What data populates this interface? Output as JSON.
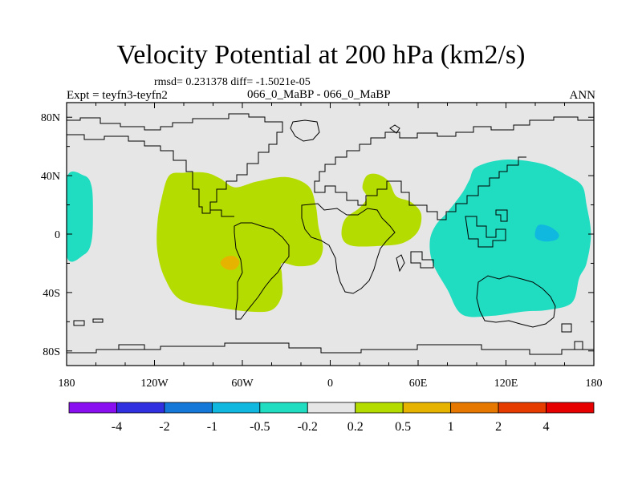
{
  "chart_data": {
    "type": "heatmap",
    "title": "Velocity Potential at 200 hPa (km2/s)",
    "stats_text": "rmsd= 0.231378 diff= -1.5021e-05",
    "left_label": "Expt = teyfn3-teyfn2",
    "center_label": "066_0_MaBP - 066_0_MaBP",
    "right_label": "ANN",
    "xlim": [
      -180,
      180
    ],
    "ylim": [
      -90,
      90
    ],
    "x_ticks": [
      {
        "value": -180,
        "label": "180"
      },
      {
        "value": -120,
        "label": "120W"
      },
      {
        "value": -60,
        "label": "60W"
      },
      {
        "value": 0,
        "label": "0"
      },
      {
        "value": 60,
        "label": "60E"
      },
      {
        "value": 120,
        "label": "120E"
      },
      {
        "value": 180,
        "label": "180"
      }
    ],
    "y_ticks": [
      {
        "value": 80,
        "label": "80N"
      },
      {
        "value": 40,
        "label": "40N"
      },
      {
        "value": 0,
        "label": "0"
      },
      {
        "value": -40,
        "label": "40S"
      },
      {
        "value": -80,
        "label": "80S"
      }
    ],
    "colorbar": {
      "colors": [
        "#8a0ff0",
        "#3030e0",
        "#1478d8",
        "#10b8e0",
        "#20dcc0",
        "#e6e6e6",
        "#b4dc00",
        "#e6b400",
        "#e67800",
        "#e63c00",
        "#e60000"
      ],
      "labels": [
        "-4",
        "-2",
        "-1",
        "-0.5",
        "-0.2",
        "0.2",
        "0.5",
        "1",
        "2",
        "4"
      ]
    },
    "regions": [
      {
        "name": "positive-africa-atlantic",
        "class": "0.2 to 0.5",
        "color": "#b4dc00",
        "points": [
          [
            -110,
            40
          ],
          [
            -100,
            42
          ],
          [
            -85,
            42
          ],
          [
            -75,
            38
          ],
          [
            -65,
            32
          ],
          [
            -50,
            36
          ],
          [
            -30,
            39
          ],
          [
            -15,
            33
          ],
          [
            -10,
            20
          ],
          [
            -8,
            5
          ],
          [
            -5,
            -10
          ],
          [
            -10,
            -20
          ],
          [
            -22,
            -22
          ],
          [
            -33,
            -20
          ],
          [
            -33,
            -28
          ],
          [
            -33,
            -42
          ],
          [
            -40,
            -52
          ],
          [
            -55,
            -53
          ],
          [
            -78,
            -50
          ],
          [
            -102,
            -45
          ],
          [
            -113,
            -30
          ],
          [
            -118,
            -12
          ],
          [
            -118,
            8
          ],
          [
            -115,
            25
          ]
        ]
      },
      {
        "name": "positive-indian-ocean",
        "class": "0.2 to 0.5",
        "color": "#b4dc00",
        "points": [
          [
            25,
            40
          ],
          [
            32,
            41
          ],
          [
            40,
            36
          ],
          [
            45,
            26
          ],
          [
            55,
            22
          ],
          [
            62,
            14
          ],
          [
            60,
            2
          ],
          [
            50,
            -6
          ],
          [
            35,
            -8
          ],
          [
            15,
            -8
          ],
          [
            8,
            -2
          ],
          [
            10,
            10
          ],
          [
            20,
            18
          ],
          [
            25,
            25
          ],
          [
            22,
            32
          ]
        ]
      },
      {
        "name": "negative-pacific",
        "class": "-0.5 to -0.2",
        "color": "#20dcc0",
        "points": [
          [
            100,
            46
          ],
          [
            120,
            51
          ],
          [
            145,
            48
          ],
          [
            162,
            40
          ],
          [
            172,
            33
          ],
          [
            175,
            20
          ],
          [
            178,
            0
          ],
          [
            175,
            -20
          ],
          [
            170,
            -30
          ],
          [
            165,
            -47
          ],
          [
            148,
            -52
          ],
          [
            132,
            -53
          ],
          [
            110,
            -56
          ],
          [
            90,
            -55
          ],
          [
            80,
            -38
          ],
          [
            70,
            -20
          ],
          [
            68,
            -5
          ],
          [
            72,
            6
          ],
          [
            80,
            15
          ],
          [
            90,
            28
          ],
          [
            95,
            37
          ]
        ]
      },
      {
        "name": "negative-west-pacific-edge",
        "class": "-0.5 to -0.2",
        "color": "#20dcc0",
        "points": [
          [
            -180,
            38
          ],
          [
            -168,
            40
          ],
          [
            -163,
            33
          ],
          [
            -162,
            15
          ],
          [
            -163,
            -5
          ],
          [
            -168,
            -14
          ],
          [
            -180,
            -15
          ]
        ]
      },
      {
        "name": "negative-core",
        "class": "-1 to -0.5",
        "color": "#10b8e0",
        "points": [
          [
            142,
            6
          ],
          [
            150,
            5
          ],
          [
            156,
            0
          ],
          [
            154,
            -4
          ],
          [
            146,
            -5
          ],
          [
            140,
            -2
          ]
        ]
      },
      {
        "name": "positive-core",
        "class": "0.5 to 1",
        "color": "#e6b400",
        "points": [
          [
            -72,
            -16
          ],
          [
            -66,
            -15
          ],
          [
            -62,
            -19
          ],
          [
            -65,
            -24
          ],
          [
            -71,
            -24
          ],
          [
            -75,
            -20
          ]
        ]
      }
    ],
    "grid": false
  }
}
